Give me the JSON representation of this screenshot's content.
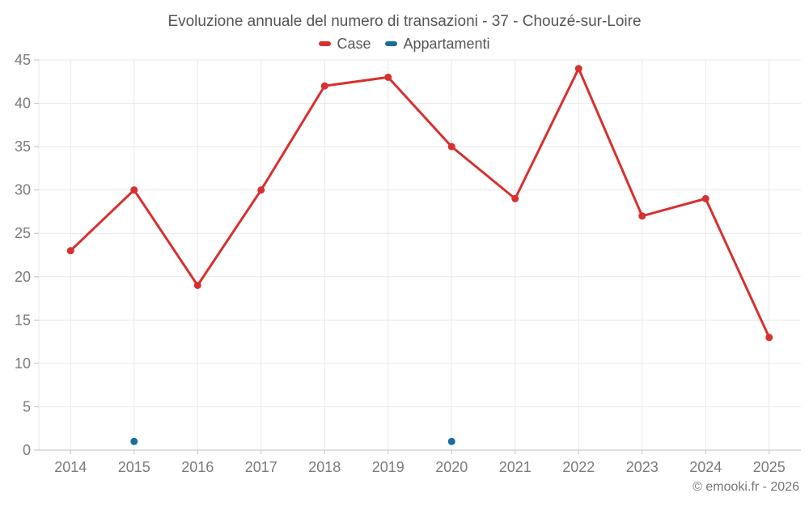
{
  "title": "Evoluzione annuale del numero di transazioni - 37 - Chouzé-sur-Loire",
  "copyright": "© emooki.fr - 2026",
  "style": {
    "grid_color": "#e8e8e8",
    "axis_color": "#c2c2c2",
    "tick_color": "#c2c2c2",
    "axis_label_color": "#7a7a7a",
    "title_color": "#555555",
    "background": "#ffffff",
    "case_color": "#d7302f",
    "appartamenti_color": "#176d9c"
  },
  "chart_data": {
    "type": "line",
    "title": "Evoluzione annuale del numero di transazioni - 37 - Chouzé-sur-Loire",
    "xlabel": "",
    "ylabel": "",
    "categories": [
      "2014",
      "2015",
      "2016",
      "2017",
      "2018",
      "2019",
      "2020",
      "2021",
      "2022",
      "2023",
      "2024",
      "2025"
    ],
    "series": [
      {
        "name": "Case",
        "color": "#d7302f",
        "values": [
          23,
          30,
          19,
          30,
          42,
          43,
          35,
          29,
          44,
          27,
          29,
          13
        ]
      },
      {
        "name": "Appartamenti",
        "color": "#176d9c",
        "values": [
          null,
          1,
          null,
          null,
          null,
          null,
          1,
          null,
          null,
          null,
          null,
          null
        ]
      }
    ],
    "ylim": [
      0,
      45
    ],
    "ytick_step": 5,
    "grid": true,
    "legend_position": "top"
  }
}
